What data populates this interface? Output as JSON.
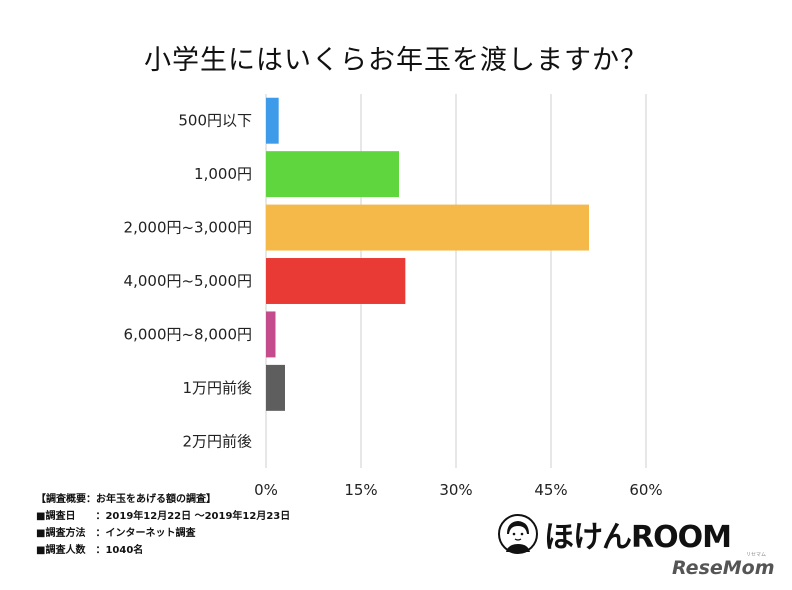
{
  "chart_data": {
    "type": "bar",
    "orientation": "horizontal",
    "title": "小学生にはいくらお年玉を渡しますか？",
    "categories": [
      "500円以下",
      "1,000円",
      "2,000円~3,000円",
      "4,000円~5,000円",
      "6,000円~8,000円",
      "1万円前後",
      "2万円前後"
    ],
    "values": [
      2,
      21,
      51,
      22,
      1.5,
      3,
      0
    ],
    "colors": [
      "#3d9be9",
      "#5fd63e",
      "#f5b94a",
      "#e93a36",
      "#c44b8c",
      "#5e5e5e",
      "#cccccc"
    ],
    "xlim": [
      0,
      60
    ],
    "xticks": [
      "0%",
      "15%",
      "30%",
      "45%",
      "60%"
    ],
    "grid": true
  },
  "notes": {
    "lines": [
      "【調査概要：お年玉をあげる額の調査】",
      "■調査日　　：2019年12月22日 〜2019年12月23日",
      "■調査方法　：インターネット調査",
      "■調査人数　：1040名"
    ]
  },
  "branding": {
    "logo": "ほけんROOM",
    "logo_icon": "person-avatar-icon",
    "publisher": "ReseMom",
    "publisher_sub": "リセマム"
  }
}
